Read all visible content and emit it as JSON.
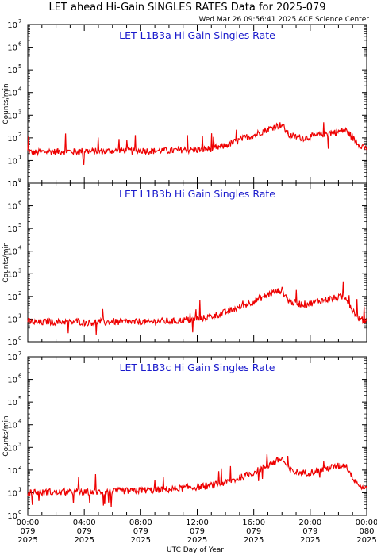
{
  "figure": {
    "title": "LET ahead Hi-Gain SINGLES RATES Data for 2025-079",
    "timestamp": "Wed Mar 26 09:56:41 2025 ACE Science Center",
    "xlabel": "UTC Day of Year",
    "ylabel": "Counts/min",
    "x_ticks": [
      {
        "time": "00:00",
        "day": "079",
        "year": "2025"
      },
      {
        "time": "04:00",
        "day": "079",
        "year": "2025"
      },
      {
        "time": "08:00",
        "day": "079",
        "year": "2025"
      },
      {
        "time": "12:00",
        "day": "079",
        "year": "2025"
      },
      {
        "time": "16:00",
        "day": "079",
        "year": "2025"
      },
      {
        "time": "20:00",
        "day": "079",
        "year": "2025"
      },
      {
        "time": "00:00",
        "day": "080",
        "year": "2025"
      }
    ],
    "y_tick_base": "10",
    "y_tick_exponents": [
      "0",
      "1",
      "2",
      "3",
      "4",
      "5",
      "6",
      "7"
    ],
    "line_color": "#ee0000",
    "title_color": "#1a1acc"
  },
  "chart_data": [
    {
      "type": "line",
      "title": "LET L1B3a Hi Gain Singles Rate",
      "xlabel": "UTC Day of Year",
      "ylabel": "Counts/min",
      "x_range_hours": [
        0,
        24
      ],
      "ylim": [
        1,
        10000000
      ],
      "yscale": "log",
      "series": [
        {
          "x": [
            0,
            0.5,
            1,
            1.5,
            2,
            2.5,
            3,
            3.5,
            4,
            4.5,
            5,
            5.5,
            6,
            6.5,
            7,
            7.5,
            8,
            8.5,
            9,
            9.5,
            10,
            10.5,
            11,
            11.5,
            12,
            12.5,
            13,
            13.5,
            14,
            14.5,
            15,
            15.5,
            16,
            16.5,
            17,
            17.5,
            18,
            18.5,
            19,
            19.5,
            20,
            20.5,
            21,
            21.5,
            22,
            22.5,
            23,
            23.5,
            24
          ],
          "y": [
            25,
            22,
            24,
            25,
            24,
            26,
            25,
            24,
            27,
            25,
            26,
            25,
            27,
            26,
            28,
            26,
            28,
            27,
            26,
            28,
            27,
            28,
            30,
            29,
            30,
            31,
            33,
            38,
            45,
            60,
            80,
            110,
            130,
            180,
            240,
            320,
            380,
            130,
            110,
            100,
            110,
            130,
            150,
            170,
            190,
            220,
            100,
            50,
            35
          ]
        }
      ]
    },
    {
      "type": "line",
      "title": "LET L1B3b Hi Gain Singles Rate",
      "xlabel": "UTC Day of Year",
      "ylabel": "Counts/min",
      "x_range_hours": [
        0,
        24
      ],
      "ylim": [
        1,
        10000000
      ],
      "yscale": "log",
      "series": [
        {
          "x": [
            0,
            0.5,
            1,
            1.5,
            2,
            2.5,
            3,
            3.5,
            4,
            4.5,
            5,
            5.5,
            6,
            6.5,
            7,
            7.5,
            8,
            8.5,
            9,
            9.5,
            10,
            10.5,
            11,
            11.5,
            12,
            12.5,
            13,
            13.5,
            14,
            14.5,
            15,
            15.5,
            16,
            16.5,
            17,
            17.5,
            18,
            18.5,
            19,
            19.5,
            20,
            20.5,
            21,
            21.5,
            22,
            22.5,
            23,
            23.5,
            24
          ],
          "y": [
            8,
            7,
            7,
            8,
            7,
            8,
            7,
            8,
            7,
            7,
            8,
            7,
            8,
            7,
            8,
            7,
            8,
            7,
            8,
            8,
            8,
            8,
            9,
            9,
            10,
            11,
            13,
            16,
            20,
            26,
            33,
            45,
            60,
            85,
            120,
            160,
            190,
            60,
            50,
            45,
            50,
            60,
            70,
            80,
            90,
            100,
            25,
            10,
            8
          ]
        }
      ]
    },
    {
      "type": "line",
      "title": "LET L1B3c Hi Gain Singles Rate",
      "xlabel": "UTC Day of Year",
      "ylabel": "Counts/min",
      "x_range_hours": [
        0,
        24
      ],
      "ylim": [
        1,
        10000000
      ],
      "yscale": "log",
      "series": [
        {
          "x": [
            0,
            0.5,
            1,
            1.5,
            2,
            2.5,
            3,
            3.5,
            4,
            4.5,
            5,
            5.5,
            6,
            6.5,
            7,
            7.5,
            8,
            8.5,
            9,
            9.5,
            10,
            10.5,
            11,
            11.5,
            12,
            12.5,
            13,
            13.5,
            14,
            14.5,
            15,
            15.5,
            16,
            16.5,
            17,
            17.5,
            18,
            18.5,
            19,
            19.5,
            20,
            20.5,
            21,
            21.5,
            22,
            22.5,
            23,
            23.5,
            24
          ],
          "y": [
            10,
            11,
            10,
            11,
            10,
            11,
            10,
            11,
            10,
            11,
            11,
            11,
            11,
            12,
            12,
            12,
            13,
            13,
            13,
            14,
            14,
            15,
            16,
            17,
            18,
            19,
            21,
            24,
            28,
            35,
            45,
            60,
            80,
            110,
            160,
            230,
            330,
            100,
            80,
            75,
            80,
            95,
            110,
            130,
            150,
            170,
            50,
            20,
            15
          ]
        }
      ]
    }
  ]
}
